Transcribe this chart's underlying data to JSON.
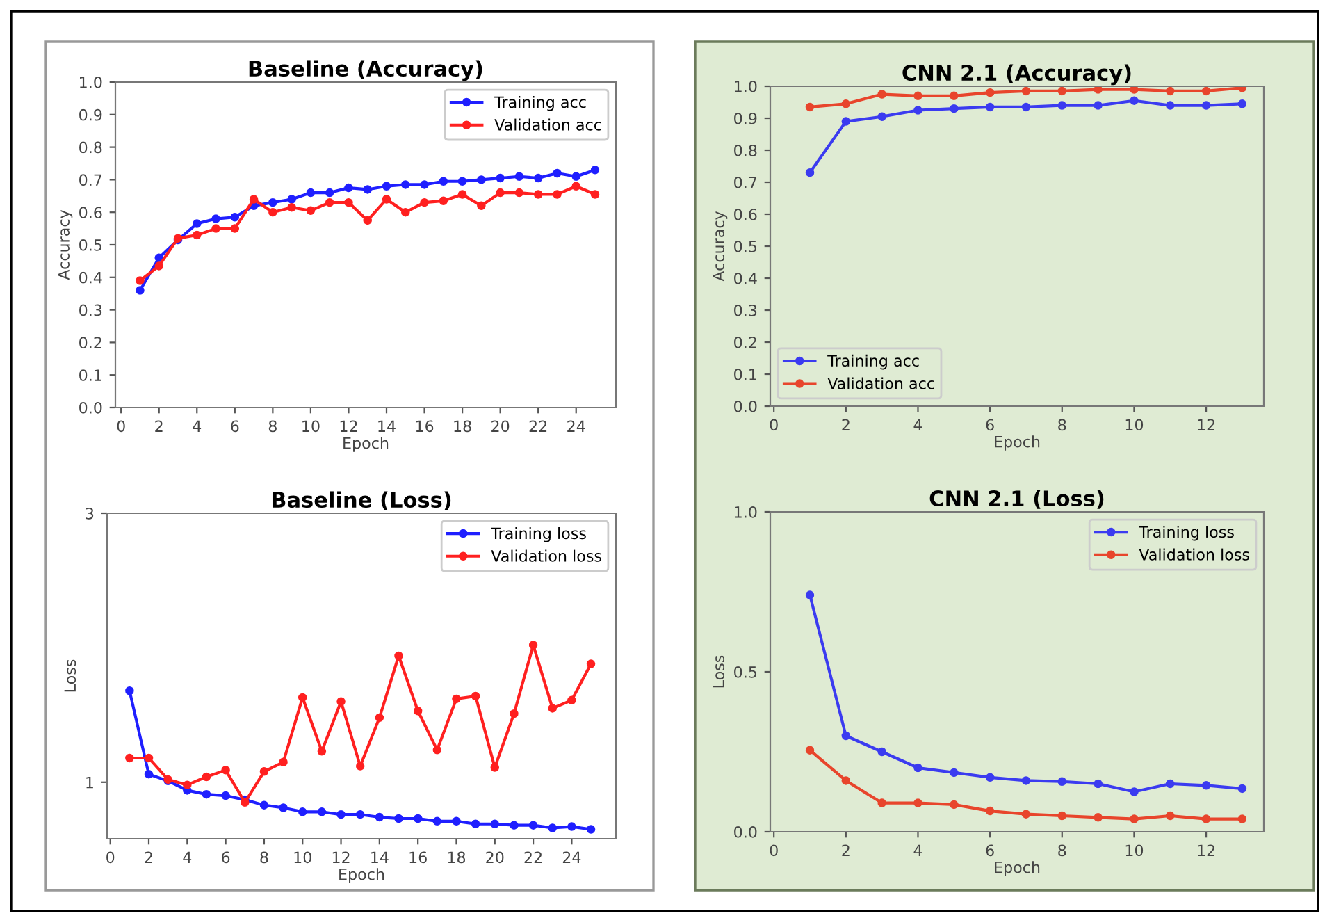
{
  "chart_data": [
    {
      "type": "line",
      "title": "Baseline (Accuracy)",
      "xlabel": "Epoch",
      "ylabel": "Accuracy",
      "marker": "circle",
      "legend": "top right",
      "grid": false,
      "xlim": [
        -0.3,
        26.1
      ],
      "xticks": [
        0,
        2,
        4,
        6,
        8,
        10,
        12,
        14,
        16,
        18,
        20,
        22,
        24
      ],
      "ylim": [
        0.0,
        1.0
      ],
      "yticks": [
        {
          "value": 0.0,
          "label": "0.0"
        },
        {
          "value": 0.1,
          "label": "0.1"
        },
        {
          "value": 0.2,
          "label": "0.2"
        },
        {
          "value": 0.3,
          "label": "0.3"
        },
        {
          "value": 0.4,
          "label": "0.4"
        },
        {
          "value": 0.5,
          "label": "0.5"
        },
        {
          "value": 0.6,
          "label": "0.6"
        },
        {
          "value": 0.7,
          "label": "0.7"
        },
        {
          "value": 0.8,
          "label": "0.8"
        },
        {
          "value": 0.9,
          "label": "0.9"
        },
        {
          "value": 1.0,
          "label": "1.0"
        }
      ],
      "x": [
        1,
        2,
        3,
        4,
        5,
        6,
        7,
        8,
        9,
        10,
        11,
        12,
        13,
        14,
        15,
        16,
        17,
        18,
        19,
        20,
        21,
        22,
        23,
        24,
        25
      ],
      "series": [
        {
          "name": "Training acc",
          "color": "#1f1fff",
          "values": [
            0.36,
            0.46,
            0.515,
            0.565,
            0.58,
            0.585,
            0.62,
            0.63,
            0.64,
            0.66,
            0.66,
            0.675,
            0.67,
            0.68,
            0.685,
            0.685,
            0.695,
            0.695,
            0.7,
            0.705,
            0.71,
            0.705,
            0.72,
            0.71,
            0.73
          ]
        },
        {
          "name": "Validation acc",
          "color": "#ff2020",
          "values": [
            0.39,
            0.435,
            0.52,
            0.53,
            0.55,
            0.55,
            0.64,
            0.6,
            0.615,
            0.605,
            0.63,
            0.63,
            0.575,
            0.64,
            0.6,
            0.63,
            0.635,
            0.655,
            0.62,
            0.66,
            0.66,
            0.655,
            0.655,
            0.68,
            0.655
          ]
        }
      ]
    },
    {
      "type": "line",
      "title": "CNN 2.1 (Accuracy)",
      "xlabel": "Epoch",
      "ylabel": "Accuracy",
      "marker": "circle",
      "legend": "bottom left",
      "grid": false,
      "xlim": [
        -0.1,
        13.6
      ],
      "xticks": [
        0,
        2,
        4,
        6,
        8,
        10,
        12
      ],
      "ylim": [
        0.0,
        1.0
      ],
      "yticks": [
        {
          "value": 0.0,
          "label": "0.0"
        },
        {
          "value": 0.1,
          "label": "0.1"
        },
        {
          "value": 0.2,
          "label": "0.2"
        },
        {
          "value": 0.3,
          "label": "0.3"
        },
        {
          "value": 0.4,
          "label": "0.4"
        },
        {
          "value": 0.5,
          "label": "0.5"
        },
        {
          "value": 0.6,
          "label": "0.6"
        },
        {
          "value": 0.7,
          "label": "0.7"
        },
        {
          "value": 0.8,
          "label": "0.8"
        },
        {
          "value": 0.9,
          "label": "0.9"
        },
        {
          "value": 1.0,
          "label": "1.0"
        }
      ],
      "x": [
        1,
        2,
        3,
        4,
        5,
        6,
        7,
        8,
        9,
        10,
        11,
        12,
        13
      ],
      "series": [
        {
          "name": "Training acc",
          "color": "#3b3bf0",
          "values": [
            0.73,
            0.89,
            0.905,
            0.925,
            0.93,
            0.935,
            0.935,
            0.94,
            0.94,
            0.955,
            0.94,
            0.94,
            0.945
          ]
        },
        {
          "name": "Validation acc",
          "color": "#e8452c",
          "values": [
            0.935,
            0.945,
            0.975,
            0.97,
            0.97,
            0.98,
            0.985,
            0.985,
            0.99,
            0.99,
            0.985,
            0.985,
            0.995
          ]
        }
      ]
    },
    {
      "type": "line",
      "title": "Baseline (Loss)",
      "xlabel": "Epoch",
      "ylabel": "Loss",
      "marker": "circle",
      "legend": "top right",
      "grid": false,
      "xlim": [
        -0.17,
        26.3
      ],
      "xticks": [
        0,
        2,
        4,
        6,
        8,
        10,
        12,
        14,
        16,
        18,
        20,
        22,
        24
      ],
      "ylim": [
        0.58,
        3.0
      ],
      "yticks": [
        1,
        3
      ],
      "x": [
        1,
        2,
        3,
        4,
        5,
        6,
        7,
        8,
        9,
        10,
        11,
        12,
        13,
        14,
        15,
        16,
        17,
        18,
        19,
        20,
        21,
        22,
        23,
        24,
        25
      ],
      "series": [
        {
          "name": "Training loss",
          "color": "#1f1fff",
          "values": [
            1.68,
            1.06,
            1.01,
            0.94,
            0.91,
            0.9,
            0.87,
            0.83,
            0.81,
            0.78,
            0.78,
            0.76,
            0.76,
            0.74,
            0.73,
            0.73,
            0.71,
            0.71,
            0.69,
            0.69,
            0.68,
            0.68,
            0.66,
            0.67,
            0.65
          ]
        },
        {
          "name": "Validation loss",
          "color": "#ff2020",
          "values": [
            1.18,
            1.18,
            1.02,
            0.98,
            1.04,
            1.09,
            0.85,
            1.08,
            1.15,
            1.63,
            1.23,
            1.6,
            1.12,
            1.48,
            1.94,
            1.53,
            1.24,
            1.62,
            1.64,
            1.11,
            1.51,
            2.02,
            1.55,
            1.61,
            1.88
          ]
        }
      ]
    },
    {
      "type": "line",
      "title": "CNN 2.1 (Loss)",
      "xlabel": "Epoch",
      "ylabel": "Loss",
      "marker": "circle",
      "legend": "top right",
      "grid": false,
      "xlim": [
        -0.1,
        13.6
      ],
      "xticks": [
        0,
        2,
        4,
        6,
        8,
        10,
        12
      ],
      "ylim": [
        0.0,
        1.0
      ],
      "yticks": [
        {
          "value": 0.0,
          "label": "0.0"
        },
        {
          "value": 0.5,
          "label": "0.5"
        },
        {
          "value": 1.0,
          "label": "1.0"
        }
      ],
      "x": [
        1,
        2,
        3,
        4,
        5,
        6,
        7,
        8,
        9,
        10,
        11,
        12,
        13
      ],
      "series": [
        {
          "name": "Training loss",
          "color": "#3b3bf0",
          "values": [
            0.74,
            0.3,
            0.25,
            0.2,
            0.185,
            0.17,
            0.16,
            0.157,
            0.15,
            0.125,
            0.15,
            0.145,
            0.135
          ]
        },
        {
          "name": "Validation loss",
          "color": "#e8452c",
          "values": [
            0.255,
            0.16,
            0.09,
            0.09,
            0.085,
            0.065,
            0.055,
            0.05,
            0.045,
            0.04,
            0.05,
            0.04,
            0.04
          ]
        }
      ]
    }
  ]
}
